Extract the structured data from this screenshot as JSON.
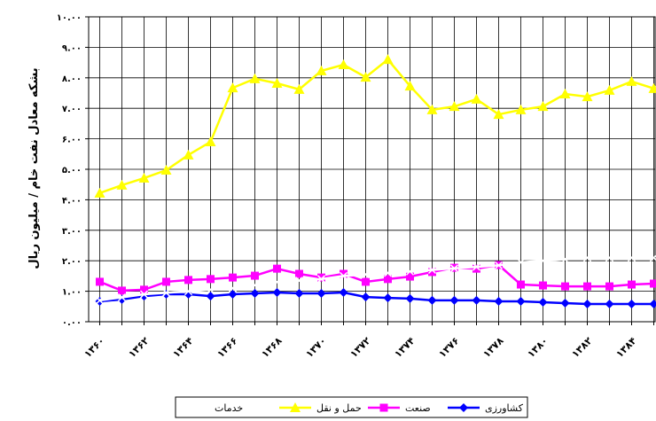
{
  "chart_data": {
    "type": "line",
    "y_label": "بشکه معادل نفت خام / میلیون ریال",
    "categories": [
      "۱۳۶۰",
      null,
      "۱۳۶۲",
      null,
      "۱۳۶۴",
      null,
      "۱۳۶۶",
      null,
      "۱۳۶۸",
      null,
      "۱۳۷۰",
      null,
      "۱۳۷۲",
      null,
      "۱۳۷۴",
      null,
      "۱۳۷۶",
      null,
      "۱۳۷۸",
      null,
      "۱۳۸۰",
      null,
      "۱۳۸۲",
      null,
      "۱۳۸۴",
      null
    ],
    "series": [
      {
        "name": "کشاورزی",
        "color": "#0000ff",
        "marker": "diamond",
        "values": [
          0.67,
          0.73,
          0.84,
          0.9,
          0.9,
          0.84,
          0.9,
          0.93,
          0.96,
          0.93,
          0.93,
          0.96,
          0.81,
          0.78,
          0.76,
          0.7,
          0.7,
          0.7,
          0.67,
          0.67,
          0.64,
          0.61,
          0.58,
          0.58,
          0.58,
          0.58
        ]
      },
      {
        "name": "صنعت",
        "color": "#ff00ff",
        "marker": "square",
        "values": [
          1.31,
          1.02,
          1.05,
          1.31,
          1.37,
          1.4,
          1.45,
          1.51,
          1.74,
          1.57,
          1.45,
          1.57,
          1.31,
          1.4,
          1.48,
          1.63,
          1.77,
          1.74,
          1.86,
          1.22,
          1.19,
          1.16,
          1.16,
          1.16,
          1.22,
          1.25
        ]
      },
      {
        "name": "حمل و نقل",
        "color": "#ffff00",
        "marker": "triangle",
        "values": [
          4.22,
          4.48,
          4.71,
          4.97,
          5.47,
          5.9,
          7.67,
          7.97,
          7.82,
          7.62,
          8.23,
          8.43,
          8.02,
          8.6,
          7.73,
          6.95,
          7.06,
          7.3,
          6.8,
          6.95,
          7.06,
          7.47,
          7.38,
          7.59,
          7.88,
          7.65
        ]
      },
      {
        "name": "خدمات",
        "color": "#ffffff",
        "marker": "x",
        "values": [
          0.7,
          0.8,
          0.9,
          0.95,
          1.0,
          1.05,
          1.1,
          1.2,
          1.3,
          1.35,
          1.4,
          1.5,
          1.55,
          1.6,
          1.65,
          1.7,
          1.75,
          1.8,
          1.85,
          1.95,
          2.0,
          2.05,
          2.1,
          2.1,
          2.1,
          2.1
        ]
      }
    ],
    "ylim": [
      0,
      10
    ],
    "yticks": [
      {
        "value": 0,
        "label": "۰.۰۰"
      },
      {
        "value": 1,
        "label": "۱.۰۰"
      },
      {
        "value": 2,
        "label": "۲.۰۰"
      },
      {
        "value": 3,
        "label": "۳.۰۰"
      },
      {
        "value": 4,
        "label": "۴.۰۰"
      },
      {
        "value": 5,
        "label": "۵.۰۰"
      },
      {
        "value": 6,
        "label": "۶.۰۰"
      },
      {
        "value": 7,
        "label": "۷.۰۰"
      },
      {
        "value": 8,
        "label": "۸.۰۰"
      },
      {
        "value": 9,
        "label": "۹.۰۰"
      },
      {
        "value": 10,
        "label": "۱۰.۰۰"
      }
    ],
    "grid": true
  }
}
